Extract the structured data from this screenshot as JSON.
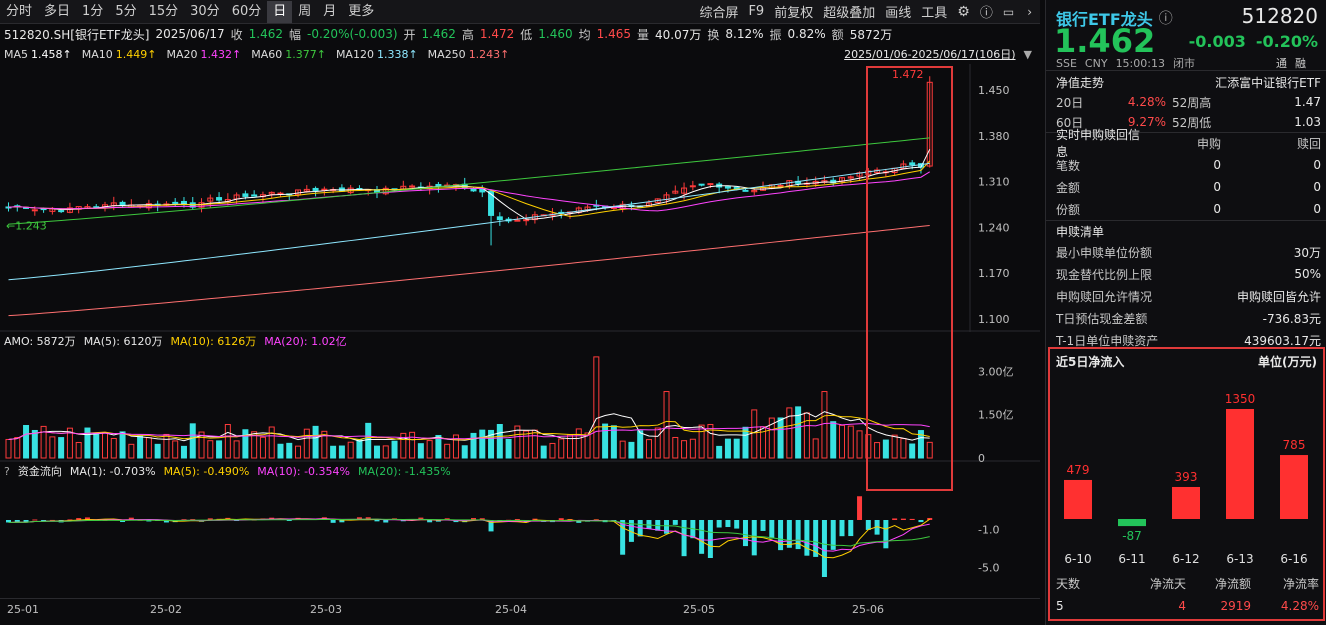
{
  "toolbar": {
    "tabs": [
      "分时",
      "多日",
      "1分",
      "5分",
      "15分",
      "30分",
      "60分",
      "日",
      "周",
      "月",
      "更多"
    ],
    "active_tab": "日",
    "right_items": [
      "综合屏",
      "F9",
      "前复权",
      "超级叠加",
      "画线",
      "工具"
    ]
  },
  "info": {
    "title": "512820.SH[银行ETF龙头]",
    "date": "2025/06/17",
    "close_label": "收",
    "close": "1.462",
    "change_label": "幅",
    "change": "-0.20%(-0.003)",
    "open_label": "开",
    "open": "1.462",
    "high_label": "高",
    "high": "1.472",
    "low_label": "低",
    "low": "1.460",
    "avg_label": "均",
    "avg": "1.465",
    "volume_label": "量",
    "volume": "40.07万",
    "turnover_label": "换",
    "turnover": "8.12%",
    "amplitude_label": "振",
    "amplitude": "0.82%",
    "amount_label": "额",
    "amount": "5872万",
    "date_range": "2025/01/06-2025/06/17(106日)"
  },
  "ma": [
    {
      "label": "MA5",
      "value": "1.458↑",
      "color": "#ffffff"
    },
    {
      "label": "MA10",
      "value": "1.449↑",
      "color": "#ffd000"
    },
    {
      "label": "MA20",
      "value": "1.432↑",
      "color": "#ff44ff"
    },
    {
      "label": "MA60",
      "value": "1.377↑",
      "color": "#3ec83e"
    },
    {
      "label": "MA120",
      "value": "1.338↑",
      "color": "#8fe8ff"
    },
    {
      "label": "MA250",
      "value": "1.243↑",
      "color": "#ff7070"
    }
  ],
  "price_axis": [
    "1.450",
    "1.380",
    "1.310",
    "1.240",
    "1.170",
    "1.100"
  ],
  "price_annotations": {
    "high_mark": "1.472",
    "low_mark": "1.243"
  },
  "amo": {
    "label": "AMO: 5872万",
    "ma5": "MA(5): 6120万",
    "ma10": "MA(10): 6126万",
    "ma20": "MA(20): 1.02亿",
    "axis": [
      "3.00亿",
      "1.50亿",
      "0"
    ]
  },
  "flow": {
    "label": "资金流向",
    "ma1": "MA(1): -0.703%",
    "ma5": "MA(5): -0.490%",
    "ma10": "MA(10): -0.354%",
    "ma20": "MA(20): -1.435%",
    "axis": [
      "-1.0",
      "-5.0"
    ]
  },
  "xaxis": [
    "25-01",
    "25-02",
    "25-03",
    "25-04",
    "25-05",
    "25-06"
  ],
  "side": {
    "name": "银行ETF龙头",
    "code": "512820",
    "price": "1.462",
    "change": "-0.003",
    "change_pct": "-0.20%",
    "meta": [
      "SSE",
      "CNY",
      "15:00:13",
      "闭市"
    ],
    "badges": [
      "通",
      "融"
    ],
    "nav_label": "净值走势",
    "index_name": "汇添富中证银行ETF",
    "stats": [
      {
        "k": "20日",
        "v": "4.28%",
        "k2": "52周高",
        "v2": "1.47"
      },
      {
        "k": "60日",
        "v": "9.27%",
        "k2": "52周低",
        "v2": "1.03"
      }
    ],
    "realtime_title": "实时申购赎回信息",
    "realtime_cols": [
      "申购",
      "赎回"
    ],
    "realtime_rows": [
      {
        "k": "笔数",
        "a": "0",
        "b": "0"
      },
      {
        "k": "金额",
        "a": "0",
        "b": "0"
      },
      {
        "k": "份额",
        "a": "0",
        "b": "0"
      }
    ],
    "list_title": "申赎清单",
    "list_rows": [
      {
        "k": "最小申赎单位份额",
        "v": "30万"
      },
      {
        "k": "现金替代比例上限",
        "v": "50%"
      },
      {
        "k": "申购赎回允许情况",
        "v": "申购赎回皆允许"
      },
      {
        "k": "T日预估现金差额",
        "v": "-736.83元"
      },
      {
        "k": "T-1日单位申赎资产",
        "v": "439603.17元"
      }
    ],
    "flow5_title": "近5日净流入",
    "flow5_unit": "单位(万元)",
    "flow5_stats_headers": [
      "天数",
      "净流天",
      "净流额",
      "净流率"
    ],
    "flow5_stats_values": [
      "5",
      "4",
      "2919",
      "4.28%"
    ]
  },
  "chart_data": [
    {
      "type": "bar",
      "title": "近5日净流入",
      "unit": "单位(万元)",
      "categories": [
        "6-10",
        "6-11",
        "6-12",
        "6-13",
        "6-16"
      ],
      "values": [
        479,
        -87,
        393,
        1350,
        785
      ]
    }
  ],
  "colors": {
    "up": "#ff3b3b",
    "down": "#38e2e2",
    "frame": "#e03a3a"
  }
}
